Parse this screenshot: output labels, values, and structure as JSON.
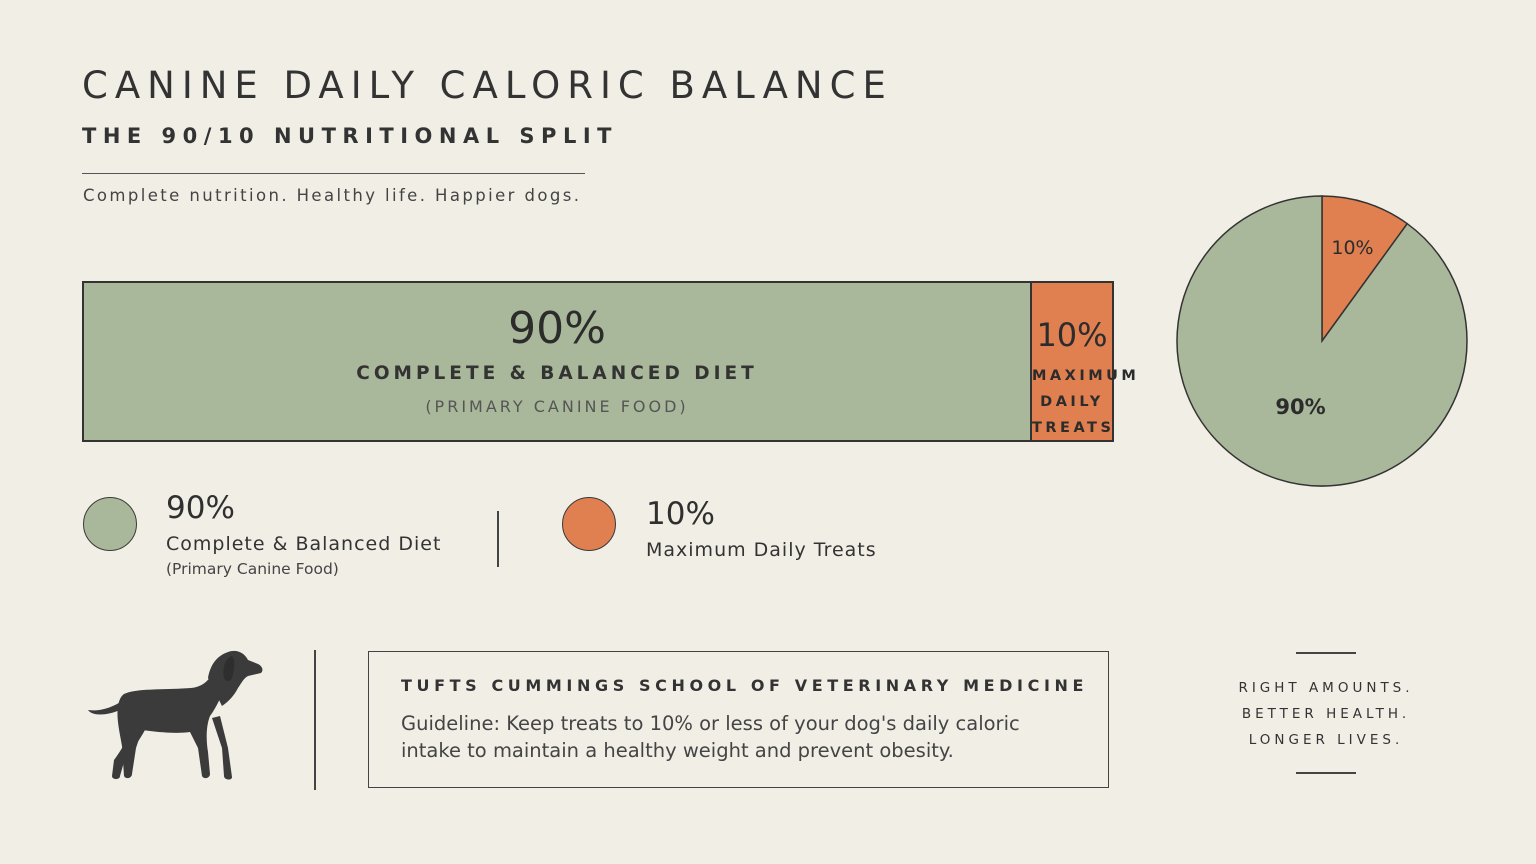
{
  "header": {
    "title": "CANINE DAILY CALORIC BALANCE",
    "subtitle": "THE 90/10 NUTRITIONAL SPLIT",
    "tagline": "Complete nutrition. Healthy life. Happier dogs."
  },
  "colors": {
    "diet": "#a9b89a",
    "treats": "#e07f4f",
    "background": "#f1eee6",
    "outline": "#333333"
  },
  "chart_data": [
    {
      "type": "bar",
      "orientation": "horizontal-stacked",
      "series": [
        {
          "pct_label": "90%",
          "value": 90,
          "label": "COMPLETE & BALANCED DIET",
          "sub": "(PRIMARY CANINE FOOD)"
        },
        {
          "pct_label": "10%",
          "value": 10,
          "label_line1": "MAXIMUM",
          "label_line2": "DAILY TREATS"
        }
      ]
    },
    {
      "type": "pie",
      "slices": [
        {
          "value": 10,
          "label": "10%"
        },
        {
          "value": 90,
          "label": "90%"
        }
      ]
    }
  ],
  "legend": {
    "diet": {
      "pct": "90%",
      "label": "Complete & Balanced Diet",
      "sub": "(Primary Canine Food)"
    },
    "treats": {
      "pct": "10%",
      "label": "Maximum Daily Treats"
    }
  },
  "source": {
    "name": "TUFTS CUMMINGS SCHOOL OF VETERINARY MEDICINE",
    "text": "Guideline: Keep treats to 10% or less of your dog's daily caloric intake to maintain a healthy weight and prevent obesity."
  },
  "motto": {
    "line1": "RIGHT AMOUNTS.",
    "line2": "BETTER HEALTH.",
    "line3": "LONGER LIVES."
  },
  "icons": {
    "dog": "dog-silhouette-icon"
  }
}
